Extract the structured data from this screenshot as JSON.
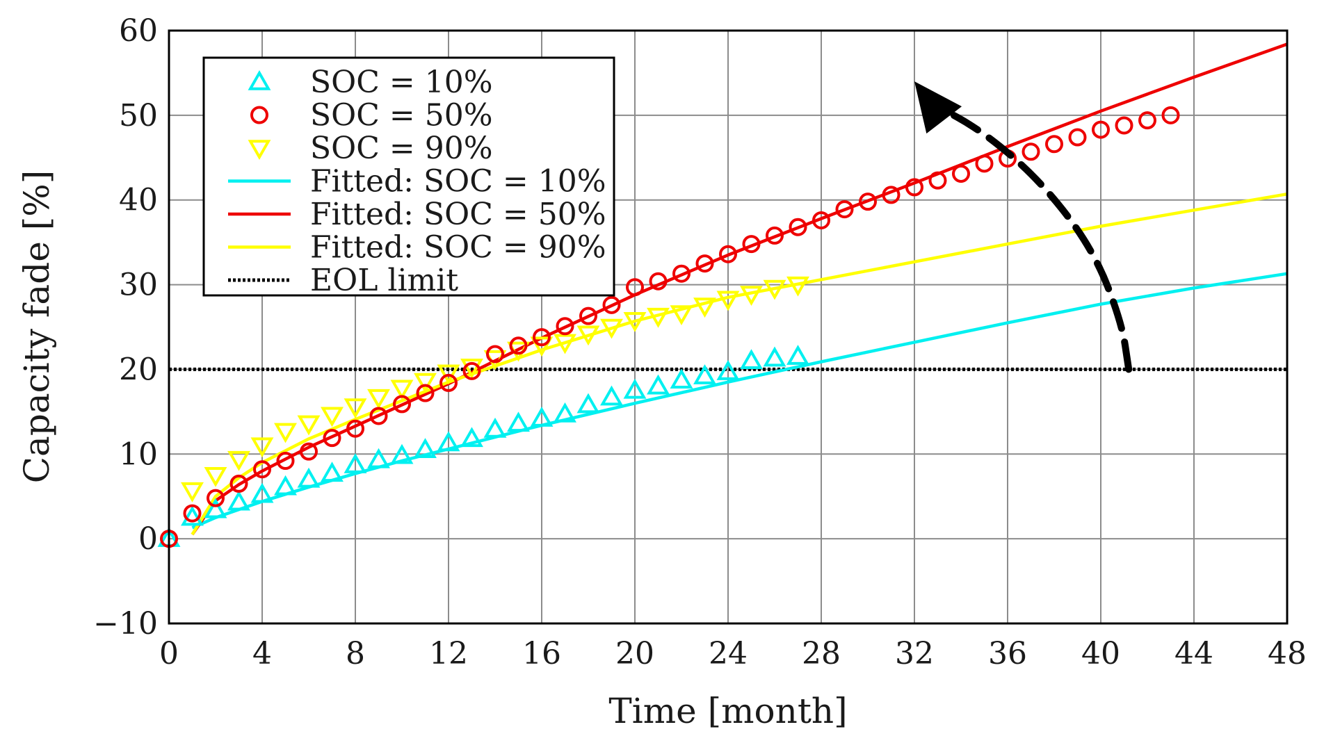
{
  "chart_data": {
    "type": "scatter",
    "title": "",
    "xlabel": "Time [month]",
    "ylabel": "Capacity fade [%]",
    "xlim": [
      0,
      48
    ],
    "ylim": [
      -10,
      60
    ],
    "xticks": [
      0,
      4,
      8,
      12,
      16,
      20,
      24,
      28,
      32,
      36,
      40,
      44,
      48
    ],
    "yticks": [
      -10,
      0,
      10,
      20,
      30,
      40,
      50,
      60
    ],
    "ytick_labels": [
      "−10",
      "0",
      "10",
      "20",
      "30",
      "40",
      "50",
      "60"
    ],
    "grid": true,
    "legend_position": "top-left",
    "series": [
      {
        "name": "SOC = 10%",
        "kind": "markers",
        "marker": "triangle-up",
        "color": "#00f0f0",
        "x": [
          0,
          1,
          2,
          3,
          4,
          5,
          6,
          7,
          8,
          9,
          10,
          11,
          12,
          13,
          14,
          15,
          16,
          17,
          18,
          19,
          20,
          21,
          22,
          23,
          24,
          25,
          26,
          27
        ],
        "y": [
          0,
          2.5,
          3.4,
          4.3,
          5.2,
          6.1,
          7.0,
          7.7,
          8.7,
          9.3,
          9.8,
          10.5,
          11.3,
          11.8,
          12.9,
          13.6,
          14.2,
          14.7,
          15.8,
          16.7,
          17.5,
          18.0,
          18.7,
          19.2,
          19.7,
          21.0,
          21.3,
          21.5
        ]
      },
      {
        "name": "SOC = 50%",
        "kind": "markers",
        "marker": "circle",
        "color": "#ee0000",
        "x": [
          0,
          1,
          2,
          3,
          4,
          5,
          6,
          7,
          8,
          9,
          10,
          11,
          12,
          13,
          14,
          15,
          16,
          17,
          18,
          19,
          20,
          21,
          22,
          23,
          24,
          25,
          26,
          27,
          28,
          29,
          30,
          31,
          32,
          33,
          34,
          35,
          36,
          37,
          38,
          39,
          40,
          41,
          42,
          43
        ],
        "y": [
          0,
          3.0,
          4.8,
          6.5,
          8.2,
          9.2,
          10.3,
          11.9,
          13.0,
          14.5,
          15.9,
          17.2,
          18.4,
          19.8,
          21.8,
          22.8,
          23.8,
          25.1,
          26.3,
          27.6,
          29.7,
          30.4,
          31.3,
          32.5,
          33.6,
          34.8,
          35.8,
          36.8,
          37.6,
          38.9,
          39.8,
          40.6,
          41.5,
          42.3,
          43.1,
          44.3,
          44.9,
          45.7,
          46.6,
          47.4,
          48.3,
          48.8,
          49.4,
          50.0
        ]
      },
      {
        "name": "SOC = 90%",
        "kind": "markers",
        "marker": "triangle-down",
        "color": "#ffff00",
        "x": [
          1,
          2,
          3,
          4,
          5,
          6,
          7,
          8,
          9,
          10,
          11,
          12,
          13,
          14,
          15,
          16,
          17,
          18,
          19,
          20,
          21,
          22,
          23,
          24,
          25,
          26,
          27
        ],
        "y": [
          5.7,
          7.5,
          9.4,
          11.0,
          12.7,
          13.6,
          14.6,
          15.6,
          16.7,
          17.8,
          18.6,
          19.6,
          20.3,
          21.3,
          22.3,
          22.9,
          23.2,
          24.2,
          25.0,
          25.8,
          26.3,
          26.6,
          27.5,
          28.3,
          28.9,
          29.6,
          30.0
        ]
      },
      {
        "name": "Fitted: SOC = 10%",
        "kind": "line",
        "style": "solid",
        "color": "#00f0f0",
        "x": [
          1,
          2,
          4,
          6,
          8,
          10,
          12,
          16,
          20,
          24,
          28,
          32,
          36,
          40,
          44,
          48
        ],
        "y": [
          1.3,
          2.5,
          4.4,
          6.1,
          7.7,
          9.2,
          10.6,
          13.4,
          16.0,
          18.5,
          20.9,
          23.2,
          25.5,
          27.7,
          29.6,
          31.3
        ]
      },
      {
        "name": "Fitted: SOC = 50%",
        "kind": "line",
        "style": "solid",
        "color": "#ee0000",
        "x": [
          1,
          2,
          3,
          4,
          6,
          8,
          10,
          12,
          14,
          16,
          20,
          24,
          28,
          32,
          36,
          40,
          44,
          48
        ],
        "y": [
          0.5,
          4.5,
          6.4,
          8.0,
          10.8,
          13.3,
          15.8,
          18.3,
          21.0,
          23.7,
          28.8,
          33.5,
          37.8,
          42.0,
          46.3,
          50.5,
          54.5,
          58.4
        ]
      },
      {
        "name": "Fitted: SOC = 90%",
        "kind": "line",
        "style": "solid",
        "color": "#ffff00",
        "x": [
          1,
          2,
          3,
          4,
          6,
          8,
          10,
          12,
          14,
          16,
          20,
          24,
          28,
          32,
          36,
          40,
          44,
          48
        ],
        "y": [
          0.5,
          5.0,
          7.2,
          9.0,
          11.8,
          14.1,
          16.3,
          18.5,
          20.4,
          22.3,
          25.7,
          28.5,
          30.6,
          32.7,
          34.8,
          36.9,
          38.8,
          40.7
        ]
      },
      {
        "name": "EOL limit",
        "kind": "line",
        "style": "dotted",
        "color": "#000000",
        "x": [
          0,
          48
        ],
        "y": [
          20,
          20
        ]
      }
    ],
    "annotations": [
      {
        "type": "arrow",
        "style": "dashed",
        "color": "#000000",
        "path": [
          [
            41.2,
            20
          ],
          [
            40.9,
            25.5
          ],
          [
            39.7,
            34
          ],
          [
            37.5,
            42
          ],
          [
            35.0,
            48
          ],
          [
            32.7,
            51.5
          ]
        ],
        "head": [
          32.0,
          54.0
        ]
      }
    ]
  }
}
